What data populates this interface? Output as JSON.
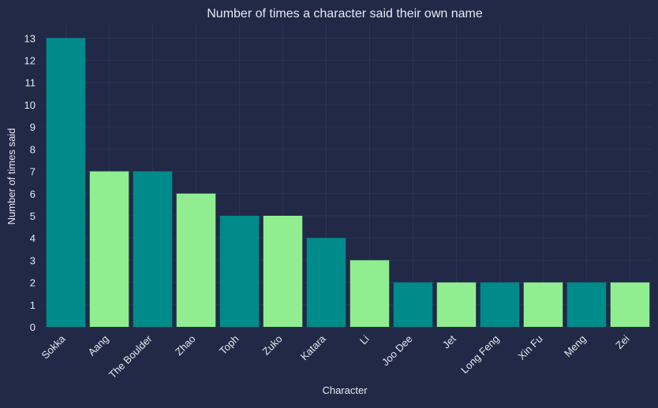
{
  "chart_data": {
    "type": "bar",
    "title": "Number of times a character said their own name",
    "xlabel": "Character",
    "ylabel": "Number of times said",
    "categories": [
      "Sokka",
      "Aang",
      "The Boulder",
      "Zhao",
      "Toph",
      "Zuko",
      "Katara",
      "Li",
      "Joo Dee",
      "Jet",
      "Long Feng",
      "Xin Fu",
      "Meng",
      "Zei"
    ],
    "values": [
      13,
      7,
      7,
      6,
      5,
      5,
      4,
      3,
      2,
      2,
      2,
      2,
      2,
      2
    ],
    "ylim": [
      0,
      13.65
    ],
    "yticks": [
      0,
      1,
      2,
      3,
      4,
      5,
      6,
      7,
      8,
      9,
      10,
      11,
      12,
      13
    ],
    "grid": true,
    "legend": "none",
    "colors": {
      "background": "#212946",
      "bar_even": "#008B8B",
      "bar_odd": "#90EE90",
      "text": "#E8E8F0",
      "grid": "#2A3459"
    }
  }
}
